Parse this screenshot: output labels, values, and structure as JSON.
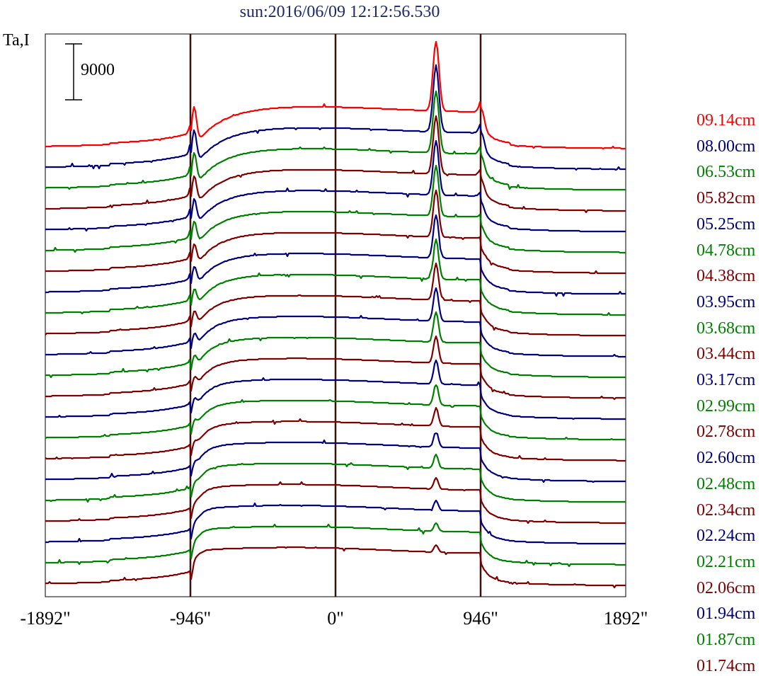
{
  "chart_data": {
    "type": "line",
    "title": "sun:2016/06/09 12:12:56.530",
    "ylabel": "Ta,I",
    "scale_bar_label": "9000",
    "scale_bar_value": 9000,
    "x_ticks": [
      {
        "value": -1892,
        "label": "-1892\""
      },
      {
        "value": -946,
        "label": "-946\""
      },
      {
        "value": 0,
        "label": "0\""
      },
      {
        "value": 946,
        "label": "946\""
      },
      {
        "value": 1892,
        "label": "1892\""
      }
    ],
    "xlim": [
      -1892,
      1892
    ],
    "vertical_lines": [
      -946,
      0,
      946
    ],
    "grid": false,
    "legend_position": "right",
    "colors": {
      "red": "#ff0000",
      "blue": "#000080",
      "green": "#008000",
      "maroon": "#800000",
      "axis": "#000000",
      "marker": "#3b1010"
    },
    "series": [
      {
        "name": "09.14cm",
        "color": "#ff0000"
      },
      {
        "name": "08.00cm",
        "color": "#000080"
      },
      {
        "name": "06.53cm",
        "color": "#008000"
      },
      {
        "name": "05.82cm",
        "color": "#800000"
      },
      {
        "name": "05.25cm",
        "color": "#000080"
      },
      {
        "name": "04.78cm",
        "color": "#008000"
      },
      {
        "name": "04.38cm",
        "color": "#800000"
      },
      {
        "name": "03.95cm",
        "color": "#000080"
      },
      {
        "name": "03.68cm",
        "color": "#008000"
      },
      {
        "name": "03.44cm",
        "color": "#800000"
      },
      {
        "name": "03.17cm",
        "color": "#000080"
      },
      {
        "name": "02.99cm",
        "color": "#008000"
      },
      {
        "name": "02.78cm",
        "color": "#800000"
      },
      {
        "name": "02.60cm",
        "color": "#000080"
      },
      {
        "name": "02.48cm",
        "color": "#008000"
      },
      {
        "name": "02.34cm",
        "color": "#800000"
      },
      {
        "name": "02.24cm",
        "color": "#000080"
      },
      {
        "name": "02.21cm",
        "color": "#008000"
      },
      {
        "name": "02.06cm",
        "color": "#800000"
      },
      {
        "name": "01.94cm",
        "color": "#000080"
      },
      {
        "name": "01.87cm",
        "color": "#008000"
      },
      {
        "name": "01.74cm",
        "color": "#800000"
      }
    ]
  }
}
